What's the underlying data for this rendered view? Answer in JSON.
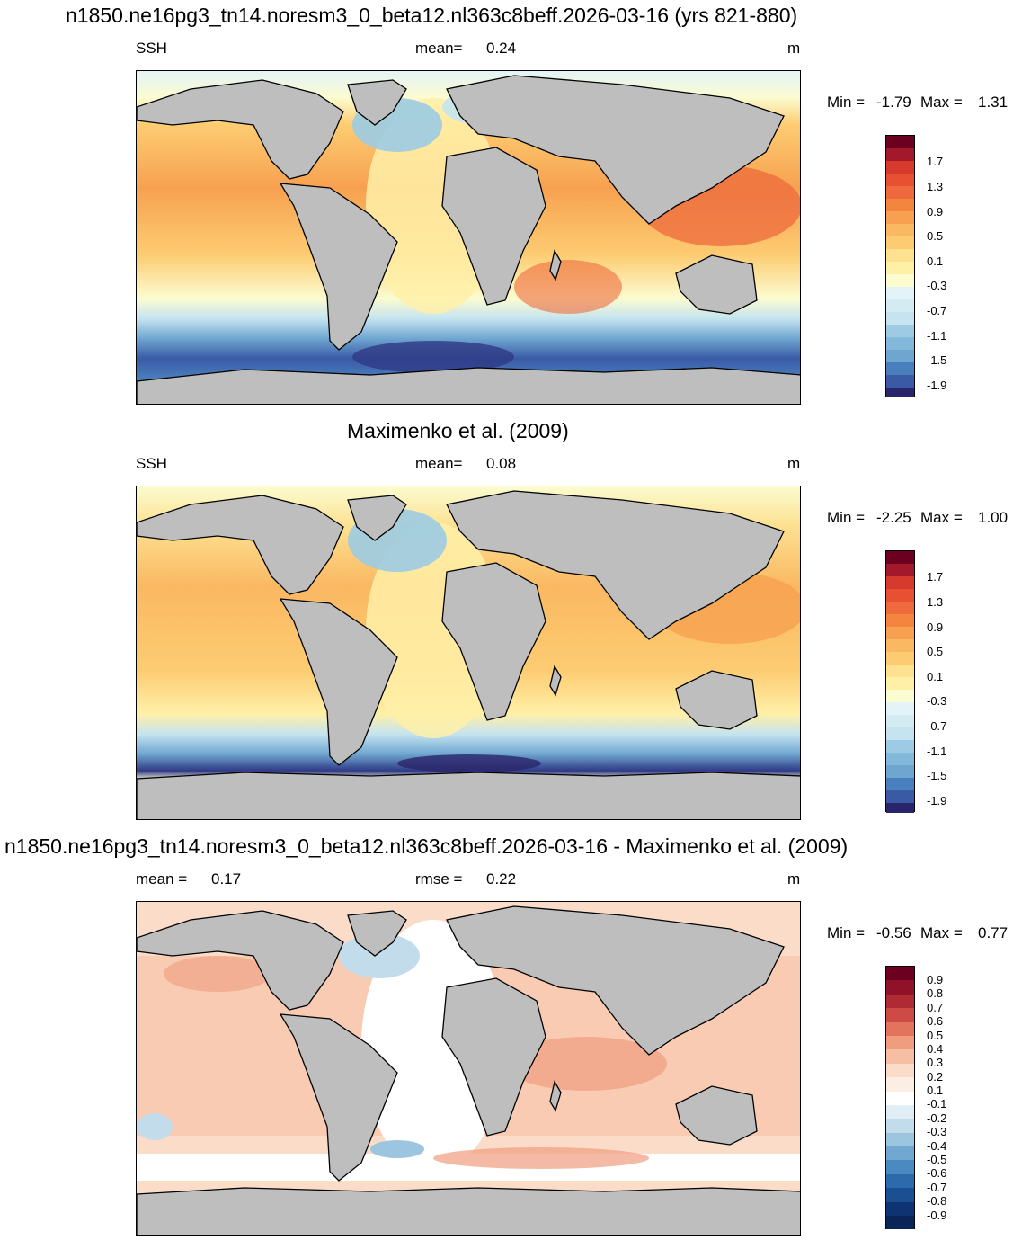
{
  "panel1": {
    "title": "n1850.ne16pg3_tn14.noresm3_0_beta12.nl363c8beff.2026-03-16 (yrs 821-880)",
    "left": "SSH",
    "center_label": "mean=",
    "center_value": "0.24",
    "units": "m",
    "min_label": "Min =",
    "min_value": "-1.79",
    "max_label": "Max =",
    "max_value": "1.31",
    "colorbar": [
      "1.7",
      "1.3",
      "0.9",
      "0.5",
      "0.1",
      "-0.3",
      "-0.7",
      "-1.1",
      "-1.5",
      "-1.9"
    ]
  },
  "panel2": {
    "title": "Maximenko et al. (2009)",
    "left": "SSH",
    "center_label": "mean=",
    "center_value": "0.08",
    "units": "m",
    "min_label": "Min =",
    "min_value": "-2.25",
    "max_label": "Max =",
    "max_value": "1.00",
    "colorbar": [
      "1.7",
      "1.3",
      "0.9",
      "0.5",
      "0.1",
      "-0.3",
      "-0.7",
      "-1.1",
      "-1.5",
      "-1.9"
    ]
  },
  "panel3": {
    "title": "n1850.ne16pg3_tn14.noresm3_0_beta12.nl363c8beff.2026-03-16 - Maximenko et al. (2009)",
    "left_label": "mean =",
    "left_value": "0.17",
    "center_label": "rmse =",
    "center_value": "0.22",
    "units": "m",
    "min_label": "Min =",
    "min_value": "-0.56",
    "max_label": "Max =",
    "max_value": "0.77",
    "colorbar": [
      "0.9",
      "0.8",
      "0.7",
      "0.6",
      "0.5",
      "0.4",
      "0.3",
      "0.2",
      "0.1",
      "-0.1",
      "-0.2",
      "-0.3",
      "-0.4",
      "-0.5",
      "-0.6",
      "-0.7",
      "-0.8",
      "-0.9"
    ]
  },
  "colors": {
    "land": "#bebebe",
    "ssh_scale": [
      "#6b0020",
      "#a3182a",
      "#d53a2c",
      "#ee6a3c",
      "#f7a150",
      "#fdcc72",
      "#fff0a8",
      "#fbfcd0",
      "#e4f3f7",
      "#c5e4f0",
      "#9ccbe3",
      "#6fa6d0",
      "#4a7fbd",
      "#3a5aa6",
      "#2f3a86",
      "#2a246a"
    ],
    "diff_scale": [
      "#6b0020",
      "#8f1228",
      "#b02a33",
      "#cd4a45",
      "#e2735c",
      "#ef9c7f",
      "#f6bfa3",
      "#fbdcc9",
      "#fdeee4",
      "#ffffff",
      "#ffffff",
      "#e2eef5",
      "#c2dcec",
      "#9cc6e0",
      "#70a8d2",
      "#4a8ac1",
      "#2d6aab",
      "#1a4f92",
      "#0e3373"
    ]
  }
}
